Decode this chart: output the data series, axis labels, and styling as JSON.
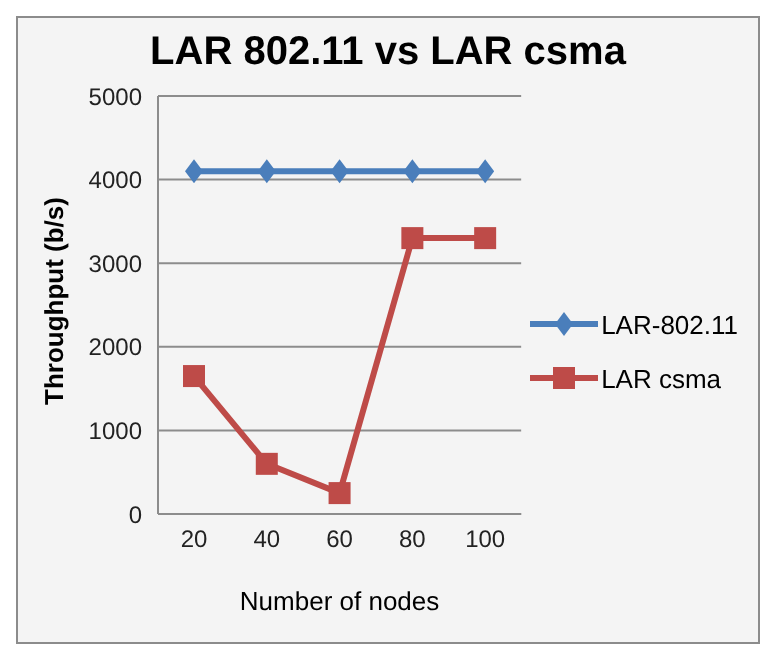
{
  "chart_data": {
    "type": "line",
    "title": "LAR 802.11 vs LAR csma",
    "xlabel": "Number of nodes",
    "ylabel": "Throughput (b/s)",
    "categories": [
      "20",
      "40",
      "60",
      "80",
      "100"
    ],
    "series": [
      {
        "name": "LAR-802.11",
        "color": "#4a7ebb",
        "marker": "diamond",
        "values": [
          4100,
          4100,
          4100,
          4100,
          4100
        ]
      },
      {
        "name": "LAR csma",
        "color": "#be4b48",
        "marker": "square",
        "values": [
          1650,
          600,
          250,
          3300,
          3300
        ]
      }
    ],
    "ylim": [
      0,
      5000
    ],
    "yticks": [
      0,
      1000,
      2000,
      3000,
      4000,
      5000
    ],
    "grid": "y",
    "legend": "right"
  }
}
